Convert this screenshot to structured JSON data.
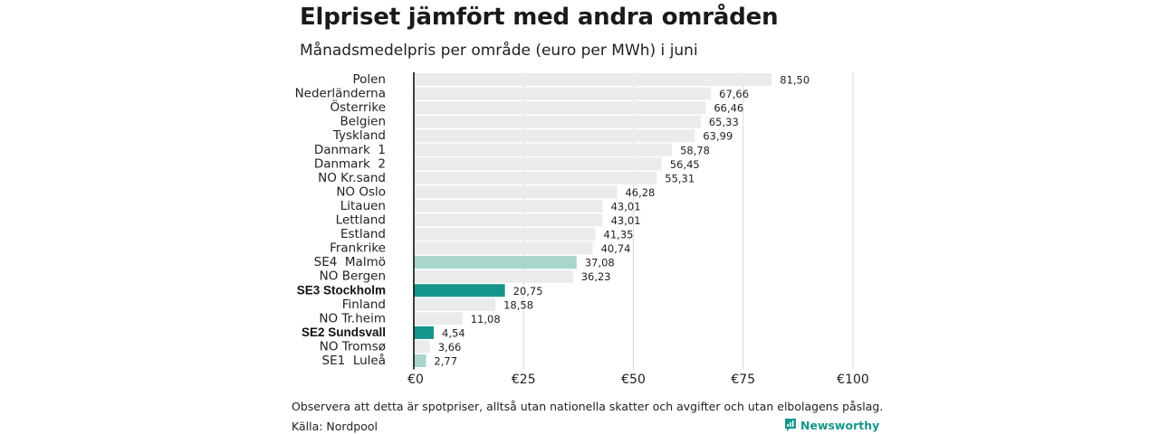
{
  "title": "Elpriset jämfört med andra områden",
  "subtitle": "Månadsmedelpris per område (euro per MWh) i juni",
  "note": "Observera att detta är spotpriser, alltså utan nationella skatter och avgifter och utan elbolagens påslag.",
  "source": "Källa: Nordpool",
  "brand": {
    "name": "Newsworthy",
    "icon": "newsworthy-logo-icon"
  },
  "colors": {
    "default_bar": "#ebebeb",
    "highlight_bar": "#16968a",
    "light_highlight_bar": "#a8d5cc",
    "axis": "#000000",
    "grid": "#d9d9d9"
  },
  "chart_data": {
    "type": "bar",
    "orientation": "horizontal",
    "categories": [
      "Polen",
      "Nederländerna",
      "Österrike",
      "Belgien",
      "Tyskland",
      "Danmark  1",
      "Danmark  2",
      "NO Kr.sand",
      "NO Oslo",
      "Litauen",
      "Lettland",
      "Estland",
      "Frankrike",
      "SE4  Malmö",
      "NO Bergen",
      "SE3 Stockholm",
      "Finland",
      "NO Tr.heim",
      "SE2 Sundsvall",
      "NO Tromsø",
      "SE1  Luleå"
    ],
    "values": [
      81.5,
      67.66,
      66.46,
      65.33,
      63.99,
      58.78,
      56.45,
      55.31,
      46.28,
      43.01,
      43.01,
      41.35,
      40.74,
      37.08,
      36.23,
      20.75,
      18.58,
      11.08,
      4.54,
      3.66,
      2.77
    ],
    "value_labels": [
      "81,50",
      "67,66",
      "66,46",
      "65,33",
      "63,99",
      "58,78",
      "56,45",
      "55,31",
      "46,28",
      "43,01",
      "43,01",
      "41,35",
      "40,74",
      "37,08",
      "36,23",
      "20,75",
      "18,58",
      "11,08",
      "4,54",
      "3,66",
      "2,77"
    ],
    "highlight": [
      "none",
      "none",
      "none",
      "none",
      "none",
      "none",
      "none",
      "none",
      "none",
      "none",
      "none",
      "none",
      "none",
      "light",
      "none",
      "strong",
      "none",
      "none",
      "strong",
      "none",
      "light"
    ],
    "bold_labels": [
      "SE3 Stockholm",
      "SE2 Sundsvall"
    ],
    "xlim": [
      0,
      100
    ],
    "xticks": [
      0,
      25,
      50,
      75,
      100
    ],
    "xtick_labels": [
      "€0",
      "€25",
      "€50",
      "€75",
      "€100"
    ],
    "grid": true,
    "xlabel": "",
    "ylabel": ""
  }
}
